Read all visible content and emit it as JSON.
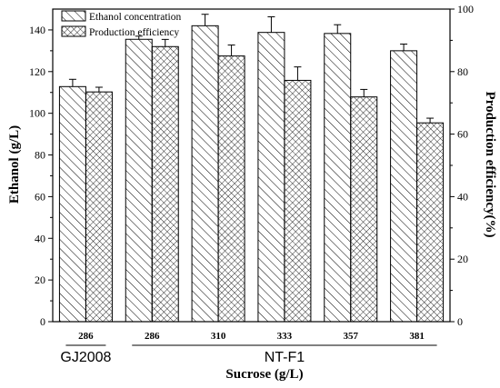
{
  "chart_data": {
    "type": "bar",
    "xlabel": "Sucrose (g/L)",
    "ylabel": "Ethanol (g/L)",
    "y2label": "Production efficiency(%)",
    "ylim": [
      0,
      150
    ],
    "y2lim": [
      0,
      100
    ],
    "yticks": [
      0,
      20,
      40,
      60,
      80,
      100,
      120,
      140
    ],
    "y2ticks": [
      0,
      20,
      40,
      60,
      80,
      100
    ],
    "categories": [
      "286",
      "286",
      "310",
      "333",
      "357",
      "381"
    ],
    "groups": [
      {
        "label": "GJ2008",
        "categories": [
          0
        ]
      },
      {
        "label": "NT-F1",
        "categories": [
          1,
          2,
          3,
          4,
          5
        ]
      }
    ],
    "legend": {
      "position": "top-left"
    },
    "series": [
      {
        "name": "Ethanol concentration",
        "axis": "left",
        "pattern": "diagonal-hatch",
        "values": [
          112.8,
          135.5,
          142.0,
          138.8,
          138.3,
          130.0
        ],
        "errors": [
          3.5,
          1.5,
          5.5,
          7.5,
          4.2,
          3.2
        ]
      },
      {
        "name": "Production efficiency",
        "axis": "right",
        "pattern": "cross-hatch",
        "values": [
          73.5,
          88.0,
          85.0,
          77.2,
          71.9,
          63.6
        ],
        "errors": [
          1.5,
          2.3,
          3.5,
          4.3,
          2.4,
          1.5
        ]
      }
    ]
  }
}
